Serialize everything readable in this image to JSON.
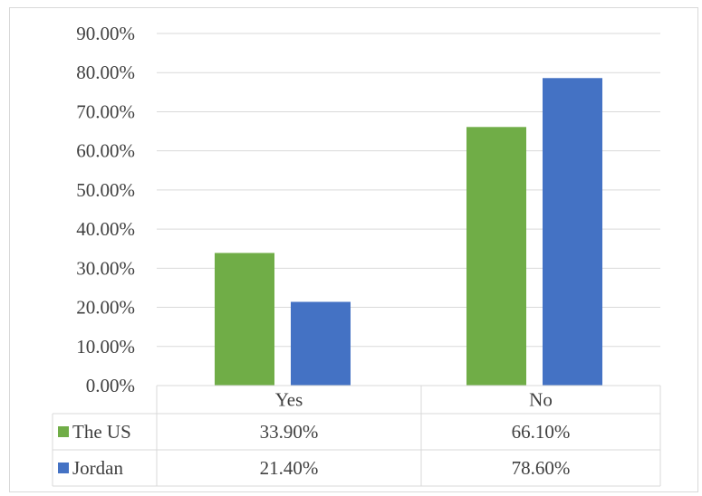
{
  "chart_data": {
    "type": "bar",
    "categories": [
      "Yes",
      "No"
    ],
    "series": [
      {
        "name": "The US",
        "values": [
          33.9,
          66.1
        ],
        "labels": [
          "33.90%",
          "66.10%"
        ],
        "color": "#70ad47"
      },
      {
        "name": "Jordan",
        "values": [
          21.4,
          78.6
        ],
        "labels": [
          "21.40%",
          "78.60%"
        ],
        "color": "#4472c4"
      }
    ],
    "ylim": [
      0,
      90
    ],
    "yticks": [
      "0.00%",
      "10.00%",
      "20.00%",
      "30.00%",
      "40.00%",
      "50.00%",
      "60.00%",
      "70.00%",
      "80.00%",
      "90.00%"
    ],
    "grid": true,
    "legend": "data-table",
    "data_table": true
  },
  "colors": {
    "grid": "#d9d9d9",
    "text": "#404040"
  }
}
